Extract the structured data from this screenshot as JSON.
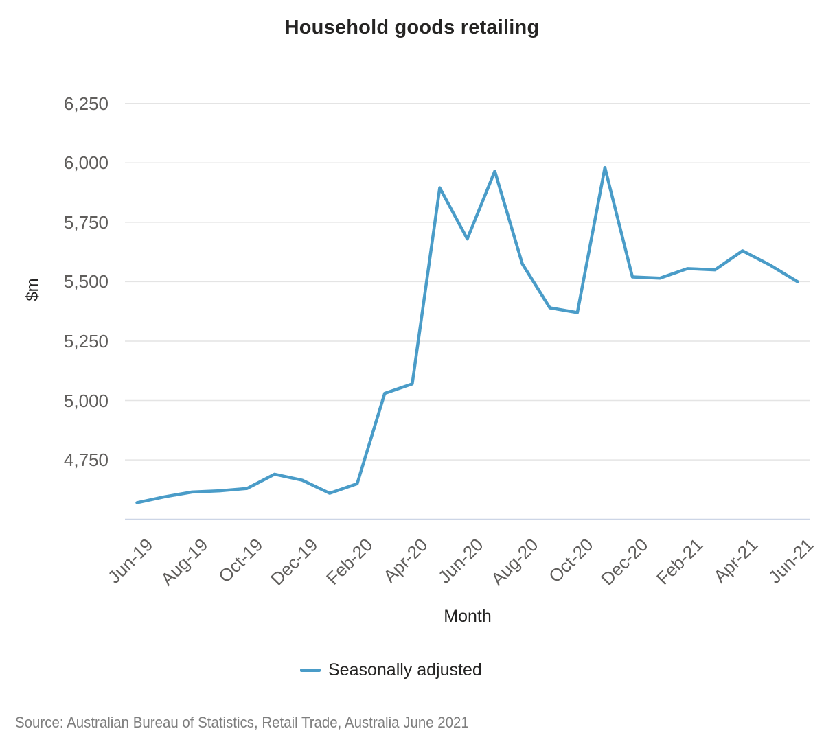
{
  "title": "Household goods retailing",
  "y_axis": {
    "label": "$m",
    "tick_labels": [
      "4,750",
      "5,000",
      "5,250",
      "5,500",
      "5,750",
      "6,000",
      "6,250"
    ]
  },
  "x_axis": {
    "label": "Month",
    "tick_labels": [
      "Jun-19",
      "Aug-19",
      "Oct-19",
      "Dec-19",
      "Feb-20",
      "Apr-20",
      "Jun-20",
      "Aug-20",
      "Oct-20",
      "Dec-20",
      "Feb-21",
      "Apr-21",
      "Jun-21"
    ]
  },
  "legend": {
    "series_label": "Seasonally adjusted"
  },
  "source": "Source: Australian Bureau of Statistics, Retail Trade, Australia June 2021",
  "colors": {
    "line": "#4a9cc8",
    "grid": "#e4e4e4",
    "axis_line": "#ccd5e6",
    "tick_text": "#605e5c",
    "title_text": "#252423",
    "source_text": "#7e7e7e"
  },
  "chart_data": {
    "type": "line",
    "x": [
      "Jun-19",
      "Jul-19",
      "Aug-19",
      "Sep-19",
      "Oct-19",
      "Nov-19",
      "Dec-19",
      "Jan-20",
      "Feb-20",
      "Mar-20",
      "Apr-20",
      "May-20",
      "Jun-20",
      "Jul-20",
      "Aug-20",
      "Sep-20",
      "Oct-20",
      "Nov-20",
      "Dec-20",
      "Jan-21",
      "Feb-21",
      "Mar-21",
      "Apr-21",
      "May-21",
      "Jun-21"
    ],
    "series": [
      {
        "name": "Seasonally adjusted",
        "values": [
          4570,
          4595,
          4615,
          4620,
          4630,
          4690,
          4665,
          4610,
          4650,
          5030,
          5070,
          5895,
          5680,
          5965,
          5575,
          5390,
          5370,
          5980,
          5520,
          5515,
          5555,
          5550,
          5630,
          5570,
          5500
        ]
      }
    ],
    "title": "Household goods retailing",
    "xlabel": "Month",
    "ylabel": "$m",
    "ylim": [
      4500,
      6250
    ],
    "yticks": [
      4750,
      5000,
      5250,
      5500,
      5750,
      6000,
      6250
    ],
    "x_tick_every": 2,
    "grid": "horizontal",
    "legend_position": "bottom"
  }
}
